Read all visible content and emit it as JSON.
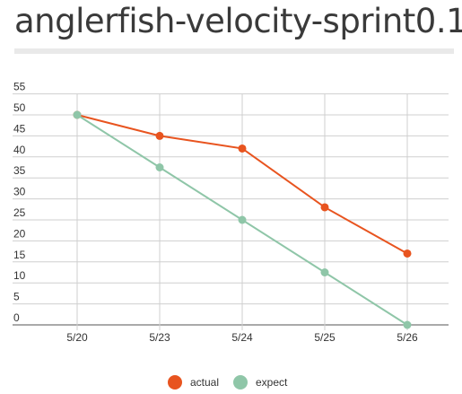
{
  "page": {
    "title": "anglerfish-velocity-sprint0.1"
  },
  "chart_data": {
    "type": "line",
    "categories": [
      "5/20",
      "5/23",
      "5/24",
      "5/25",
      "5/26"
    ],
    "series": [
      {
        "name": "actual",
        "color": "#e8541f",
        "values": [
          50,
          45,
          42,
          28,
          17
        ]
      },
      {
        "name": "expect",
        "color": "#8fc6a8",
        "values": [
          50,
          37.5,
          25,
          12.5,
          0
        ]
      }
    ],
    "yticks": [
      0,
      5,
      10,
      15,
      20,
      25,
      30,
      35,
      40,
      45,
      50,
      55
    ],
    "ylim": [
      0,
      55
    ],
    "grid": true,
    "legend_position": "bottom-center",
    "title": "",
    "xlabel": "",
    "ylabel": ""
  }
}
